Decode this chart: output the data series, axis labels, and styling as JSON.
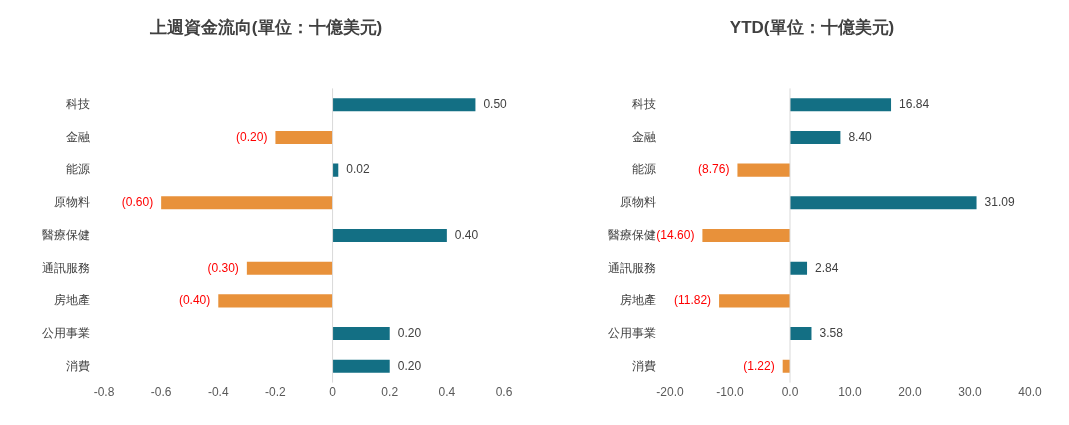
{
  "chart_data": [
    {
      "type": "bar",
      "orientation": "horizontal",
      "title": "上週資金流向(單位：十億美元)",
      "categories": [
        "科技",
        "金融",
        "能源",
        "原物料",
        "醫療保健",
        "通訊服務",
        "房地產",
        "公用事業",
        "消費"
      ],
      "values": [
        0.5,
        -0.2,
        0.02,
        -0.6,
        0.4,
        -0.3,
        -0.4,
        0.2,
        0.2
      ],
      "colors": [
        "#136f84",
        "#e8913a",
        "#136f84",
        "#e8913a",
        "#136f84",
        "#e8913a",
        "#e8913a",
        "#136f84",
        "#136f84"
      ],
      "value_labels": [
        "0.50",
        "(0.20)",
        "0.02",
        "(0.60)",
        "0.40",
        "(0.30)",
        "(0.40)",
        "0.20",
        "0.20"
      ],
      "ref_lines": [
        {
          "axis": "x",
          "value": 0,
          "color": "#d9d9d9"
        }
      ],
      "xlim": [
        -0.8,
        0.6
      ],
      "xticks": [
        -0.8,
        -0.6,
        -0.4,
        -0.2,
        0,
        0.2,
        0.4,
        0.6
      ],
      "grid": false,
      "legend": false
    },
    {
      "type": "bar",
      "orientation": "horizontal",
      "title": "YTD(單位：十億美元)",
      "categories": [
        "科技",
        "金融",
        "能源",
        "原物料",
        "醫療保健",
        "通訊服務",
        "房地產",
        "公用事業",
        "消費"
      ],
      "values": [
        16.84,
        8.4,
        -8.76,
        31.09,
        -14.6,
        2.84,
        -11.82,
        3.58,
        -1.22
      ],
      "colors": [
        "#136f84",
        "#136f84",
        "#e8913a",
        "#136f84",
        "#e8913a",
        "#136f84",
        "#e8913a",
        "#136f84",
        "#e8913a"
      ],
      "value_labels": [
        "16.84",
        "8.40",
        "(8.76)",
        "31.09",
        "(14.60)",
        "2.84",
        "(11.82)",
        "3.58",
        "(1.22)"
      ],
      "ref_lines": [
        {
          "axis": "x",
          "value": 0,
          "color": "#d9d9d9"
        }
      ],
      "xlim": [
        -20,
        40
      ],
      "xticks": [
        {
          "value": -20,
          "label": "-20.0"
        },
        {
          "value": -10,
          "label": "-10.0"
        },
        {
          "value": 0,
          "label": "0.0"
        },
        {
          "value": 10,
          "label": "10.0"
        },
        {
          "value": 20,
          "label": "20.0"
        },
        {
          "value": 30,
          "label": "30.0"
        },
        {
          "value": 40,
          "label": "40.0"
        }
      ],
      "grid": false,
      "legend": false
    }
  ]
}
